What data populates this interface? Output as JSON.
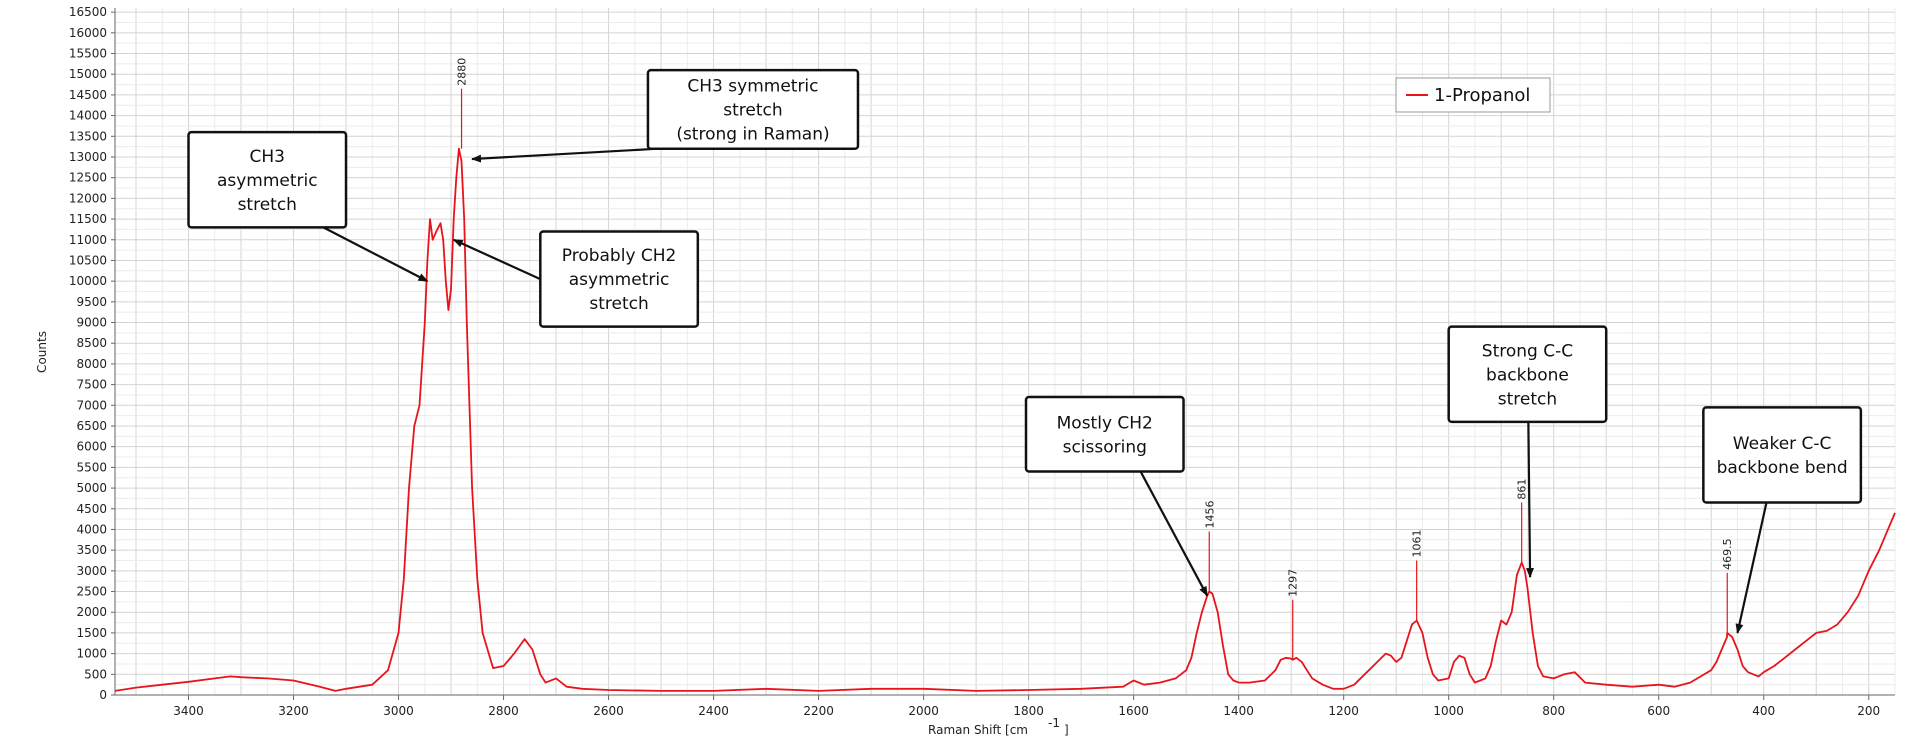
{
  "chart_data": {
    "type": "line",
    "title": "",
    "xlabel": "Raman Shift [cm",
    "xlabel_sup": "-1",
    "xlabel_end": " ]",
    "ylabel": "Counts",
    "xlim": [
      3540,
      150
    ],
    "ylim": [
      0,
      16600
    ],
    "x_reversed": true,
    "grid": true,
    "x_ticks": [
      3400,
      3200,
      3000,
      2800,
      2600,
      2400,
      2200,
      2000,
      1800,
      1600,
      1400,
      1200,
      1000,
      800,
      600,
      400,
      200
    ],
    "y_ticks": [
      0,
      500,
      1000,
      1500,
      2000,
      2500,
      3000,
      3500,
      4000,
      4500,
      5000,
      5500,
      6000,
      6500,
      7000,
      7500,
      8000,
      8500,
      9000,
      9500,
      10000,
      10500,
      11000,
      11500,
      12000,
      12500,
      13000,
      13500,
      14000,
      14500,
      15000,
      15500,
      16000,
      16500
    ],
    "legend": {
      "position": "top-right"
    },
    "series": [
      {
        "name": "1-Propanol",
        "color": "#e8141b",
        "x": [
          3540,
          3500,
          3450,
          3400,
          3350,
          3320,
          3300,
          3250,
          3200,
          3150,
          3120,
          3100,
          3050,
          3020,
          3000,
          2990,
          2980,
          2970,
          2960,
          2950,
          2945,
          2940,
          2935,
          2928,
          2920,
          2915,
          2910,
          2905,
          2900,
          2895,
          2890,
          2885,
          2880,
          2875,
          2870,
          2860,
          2850,
          2840,
          2820,
          2800,
          2780,
          2760,
          2745,
          2730,
          2720,
          2700,
          2680,
          2650,
          2600,
          2500,
          2400,
          2300,
          2200,
          2100,
          2000,
          1900,
          1800,
          1700,
          1620,
          1600,
          1580,
          1550,
          1520,
          1500,
          1490,
          1480,
          1470,
          1460,
          1456,
          1450,
          1440,
          1430,
          1420,
          1410,
          1400,
          1380,
          1350,
          1330,
          1320,
          1310,
          1300,
          1297,
          1290,
          1280,
          1270,
          1260,
          1240,
          1220,
          1200,
          1180,
          1160,
          1140,
          1120,
          1110,
          1100,
          1090,
          1080,
          1070,
          1061,
          1050,
          1040,
          1030,
          1020,
          1000,
          990,
          980,
          970,
          960,
          950,
          940,
          930,
          920,
          910,
          900,
          890,
          880,
          870,
          861,
          855,
          850,
          840,
          830,
          820,
          800,
          780,
          760,
          740,
          700,
          650,
          600,
          570,
          540,
          520,
          500,
          490,
          480,
          470,
          469.5,
          460,
          450,
          440,
          430,
          420,
          410,
          400,
          380,
          360,
          340,
          320,
          300,
          280,
          260,
          240,
          220,
          200,
          180,
          160,
          150
        ],
        "y": [
          100,
          180,
          250,
          320,
          400,
          450,
          430,
          400,
          350,
          200,
          100,
          150,
          250,
          600,
          1500,
          2800,
          5000,
          6500,
          7000,
          9000,
          10500,
          11500,
          11000,
          11200,
          11400,
          11000,
          10000,
          9300,
          9800,
          11500,
          12500,
          13200,
          12900,
          11500,
          9000,
          5000,
          2800,
          1500,
          650,
          700,
          1000,
          1350,
          1100,
          500,
          300,
          400,
          200,
          150,
          120,
          100,
          100,
          150,
          100,
          150,
          150,
          100,
          120,
          150,
          200,
          350,
          250,
          300,
          400,
          600,
          900,
          1500,
          2000,
          2400,
          2500,
          2450,
          2000,
          1200,
          500,
          350,
          300,
          300,
          350,
          600,
          850,
          900,
          880,
          850,
          900,
          800,
          600,
          400,
          250,
          150,
          150,
          250,
          500,
          750,
          1000,
          950,
          800,
          900,
          1300,
          1700,
          1800,
          1500,
          900,
          500,
          350,
          400,
          800,
          950,
          900,
          500,
          300,
          350,
          400,
          700,
          1300,
          1800,
          1700,
          2000,
          2900,
          3200,
          3000,
          2600,
          1500,
          700,
          450,
          400,
          500,
          550,
          300,
          250,
          200,
          250,
          200,
          300,
          450,
          600,
          800,
          1100,
          1400,
          1500,
          1400,
          1100,
          700,
          550,
          500,
          450,
          550,
          700,
          900,
          1100,
          1300,
          1500,
          1550,
          1700,
          2000,
          2400,
          3000,
          3500,
          4100,
          4400
        ]
      }
    ],
    "peak_labels": [
      {
        "x": 2880,
        "y": 13200,
        "label": "2880"
      },
      {
        "x": 1456,
        "y": 2500,
        "label": "1456"
      },
      {
        "x": 1297,
        "y": 850,
        "label": "1297"
      },
      {
        "x": 1061,
        "y": 1800,
        "label": "1061"
      },
      {
        "x": 861,
        "y": 3200,
        "label": "861"
      },
      {
        "x": 469.5,
        "y": 1500,
        "label": "469.5"
      }
    ],
    "annotations": [
      {
        "id": "ch3-sym",
        "lines": [
          "CH3 symmetric",
          "stretch",
          "(strong in Raman)"
        ],
        "box_x": [
          2525,
          2125
        ],
        "box_y": [
          15100,
          13200
        ],
        "arrow_to": [
          2860,
          12950
        ]
      },
      {
        "id": "ch3-asym",
        "lines": [
          "CH3",
          "asymmetric",
          "stretch"
        ],
        "box_x": [
          3400,
          3100
        ],
        "box_y": [
          13600,
          11300
        ],
        "arrow_to": [
          2945,
          10000
        ]
      },
      {
        "id": "ch2-asym",
        "lines": [
          "Probably CH2",
          "asymmetric",
          "stretch"
        ],
        "box_x": [
          2730,
          2430
        ],
        "box_y": [
          11200,
          8900
        ],
        "arrow_to": [
          2895,
          11000
        ]
      },
      {
        "id": "ch2-sciss",
        "lines": [
          "Mostly CH2",
          "scissoring"
        ],
        "box_x": [
          1805,
          1505
        ],
        "box_y": [
          7200,
          5400
        ],
        "arrow_to": [
          1460,
          2400
        ]
      },
      {
        "id": "cc-stretch",
        "lines": [
          "Strong C-C",
          "backbone",
          "stretch"
        ],
        "box_x": [
          1000,
          700
        ],
        "box_y": [
          8900,
          6600
        ],
        "arrow_to": [
          845,
          2850
        ]
      },
      {
        "id": "cc-bend",
        "lines": [
          "Weaker C-C",
          "backbone bend"
        ],
        "box_x": [
          515,
          215
        ],
        "box_y": [
          6950,
          4650
        ],
        "arrow_to": [
          450,
          1500
        ]
      }
    ]
  }
}
